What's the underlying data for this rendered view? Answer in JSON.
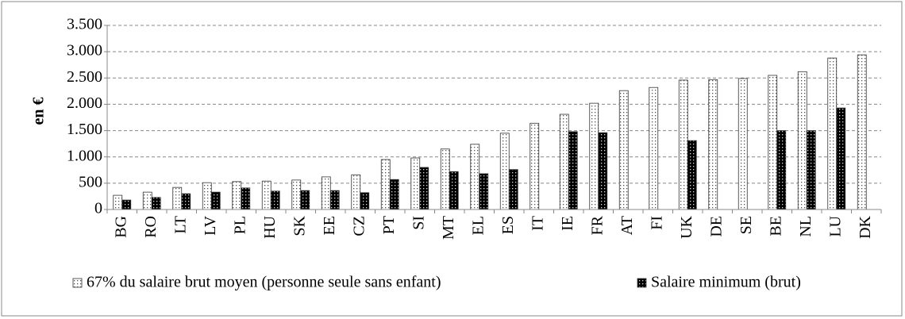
{
  "chart_data": {
    "type": "bar",
    "ylabel": "en €",
    "categories": [
      "BG",
      "RO",
      "LT",
      "LV",
      "PL",
      "HU",
      "SK",
      "EE",
      "CZ",
      "PT",
      "SI",
      "MT",
      "EL",
      "ES",
      "IT",
      "IE",
      "FR",
      "AT",
      "FI",
      "UK",
      "DE",
      "SE",
      "BE",
      "NL",
      "LU",
      "DK"
    ],
    "series": [
      {
        "name": "67% du salaire brut moyen (personne seule sans enfant)",
        "color": "#ffffff",
        "values": [
          270,
          330,
          420,
          510,
          530,
          540,
          560,
          620,
          660,
          950,
          980,
          1150,
          1240,
          1450,
          1640,
          1810,
          2020,
          2260,
          2320,
          2460,
          2470,
          2490,
          2550,
          2620,
          2880,
          2940
        ]
      },
      {
        "name": "Salaire minimum (brut)",
        "color": "#000000",
        "values": [
          180,
          230,
          300,
          330,
          410,
          350,
          360,
          360,
          320,
          570,
          800,
          720,
          680,
          760,
          null,
          1480,
          1460,
          null,
          null,
          1310,
          null,
          null,
          1500,
          1500,
          1930,
          null
        ]
      }
    ],
    "ylim": [
      0,
      3500
    ],
    "yticks": [
      0,
      500,
      {
        "value": 1000,
        "label": "1.000"
      },
      {
        "value": 1500,
        "label": "1.500"
      },
      {
        "value": 2000,
        "label": "2.000"
      },
      {
        "value": 2500,
        "label": "2.500"
      },
      {
        "value": 3000,
        "label": "3.000"
      },
      {
        "value": 3500,
        "label": "3.500"
      }
    ],
    "grid": true
  }
}
